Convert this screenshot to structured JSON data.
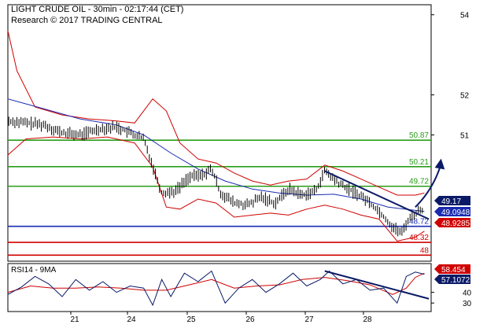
{
  "header": {
    "line1": "LIGHT CRUDE OIL - 30min - 02:17:44 (CET)",
    "line2": "Research © 2017 TRADING CENTRAL"
  },
  "colors": {
    "candle": "#000000",
    "bollinger": "#d00000",
    "ma": "#1a2bb0",
    "support_resistance": "#2a9d1a",
    "pivot": "#1a2bb0",
    "support_red": "#d00000",
    "arrow": "#0a1a66",
    "price_tag_bg": "#0a1a66",
    "ma_tag_bg": "#1a2bb0",
    "bb_tag_bg": "#d00000",
    "rsi": "#0a1a66",
    "rsi_ma": "#d00000"
  },
  "chart_data": [
    {
      "type": "candlestick",
      "instrument": "LIGHT CRUDE OIL",
      "timeframe": "30min",
      "x_ticks": [
        "21",
        "24",
        "25",
        "26",
        "27",
        "28"
      ],
      "y_ticks": [
        54,
        52,
        51
      ],
      "ylim": [
        47.85,
        54.25
      ],
      "levels": [
        {
          "value": 50.87,
          "label": "50.87",
          "color": "#2a9d1a"
        },
        {
          "value": 50.21,
          "label": "50.21",
          "color": "#2a9d1a"
        },
        {
          "value": 49.72,
          "label": "49.72",
          "color": "#2a9d1a"
        },
        {
          "value": 48.72,
          "label": "48.72",
          "color": "#1a2bb0"
        },
        {
          "value": 48.32,
          "label": "48.32",
          "color": "#d00000"
        },
        {
          "value": 48.0,
          "label": "48",
          "color": "#d00000"
        }
      ],
      "tags": [
        {
          "label": "49.17",
          "value": 49.17,
          "style": "price"
        },
        {
          "label": "49.0948",
          "value": 49.0948,
          "style": "ma"
        },
        {
          "label": "48.9285",
          "value": 48.9285,
          "style": "bb"
        }
      ],
      "series": [
        {
          "name": "price",
          "points": [
            [
              20.0,
              51.35
            ],
            [
              20.4,
              51.3
            ],
            [
              20.8,
              51.25
            ],
            [
              21.2,
              51.05
            ],
            [
              21.6,
              51.0
            ],
            [
              22.0,
              51.15
            ],
            [
              22.4,
              51.2
            ],
            [
              22.8,
              51.0
            ],
            [
              23.0,
              50.9
            ],
            [
              23.4,
              49.55
            ],
            [
              23.7,
              49.6
            ],
            [
              24.0,
              49.95
            ],
            [
              24.3,
              50.0
            ],
            [
              24.5,
              50.15
            ],
            [
              24.7,
              49.55
            ],
            [
              25.0,
              49.3
            ],
            [
              25.3,
              49.25
            ],
            [
              25.6,
              49.45
            ],
            [
              25.9,
              49.3
            ],
            [
              26.2,
              49.65
            ],
            [
              26.5,
              49.5
            ],
            [
              26.8,
              49.6
            ],
            [
              27.0,
              50.1
            ],
            [
              27.3,
              49.8
            ],
            [
              27.6,
              49.6
            ],
            [
              27.9,
              49.4
            ],
            [
              28.2,
              49.1
            ],
            [
              28.5,
              48.7
            ],
            [
              28.7,
              48.55
            ],
            [
              28.85,
              48.9
            ],
            [
              29.0,
              49.05
            ],
            [
              29.2,
              49.17
            ]
          ]
        },
        {
          "name": "ma",
          "points": [
            [
              20.0,
              51.9
            ],
            [
              20.8,
              51.65
            ],
            [
              21.6,
              51.4
            ],
            [
              22.4,
              51.25
            ],
            [
              23.0,
              51.0
            ],
            [
              23.6,
              50.55
            ],
            [
              24.2,
              50.15
            ],
            [
              24.8,
              49.85
            ],
            [
              25.4,
              49.65
            ],
            [
              26.0,
              49.55
            ],
            [
              26.6,
              49.5
            ],
            [
              27.2,
              49.52
            ],
            [
              27.8,
              49.4
            ],
            [
              28.4,
              49.2
            ],
            [
              29.2,
              49.09
            ]
          ]
        },
        {
          "name": "bb_upper",
          "points": [
            [
              20.0,
              53.6
            ],
            [
              20.2,
              52.6
            ],
            [
              20.6,
              51.7
            ],
            [
              21.2,
              51.5
            ],
            [
              21.8,
              51.4
            ],
            [
              22.4,
              51.35
            ],
            [
              22.8,
              51.3
            ],
            [
              23.2,
              51.9
            ],
            [
              23.5,
              51.6
            ],
            [
              23.8,
              50.8
            ],
            [
              24.2,
              50.4
            ],
            [
              24.6,
              50.3
            ],
            [
              25.0,
              50.05
            ],
            [
              25.4,
              49.85
            ],
            [
              25.8,
              49.75
            ],
            [
              26.2,
              49.85
            ],
            [
              26.6,
              49.9
            ],
            [
              27.0,
              50.25
            ],
            [
              27.4,
              50.1
            ],
            [
              27.8,
              49.9
            ],
            [
              28.2,
              49.7
            ],
            [
              28.6,
              49.5
            ],
            [
              29.0,
              49.5
            ],
            [
              29.2,
              49.55
            ]
          ]
        },
        {
          "name": "bb_lower",
          "points": [
            [
              20.0,
              50.5
            ],
            [
              20.4,
              50.9
            ],
            [
              21.0,
              50.95
            ],
            [
              21.6,
              50.9
            ],
            [
              22.2,
              50.95
            ],
            [
              22.8,
              50.8
            ],
            [
              23.2,
              50.2
            ],
            [
              23.5,
              49.2
            ],
            [
              23.8,
              49.15
            ],
            [
              24.2,
              49.4
            ],
            [
              24.6,
              49.3
            ],
            [
              25.0,
              48.95
            ],
            [
              25.4,
              49.0
            ],
            [
              25.8,
              49.05
            ],
            [
              26.2,
              49.0
            ],
            [
              26.6,
              49.15
            ],
            [
              27.0,
              49.25
            ],
            [
              27.4,
              49.15
            ],
            [
              27.8,
              49.0
            ],
            [
              28.2,
              48.9
            ],
            [
              28.6,
              48.35
            ],
            [
              29.0,
              48.45
            ],
            [
              29.2,
              48.6
            ]
          ]
        }
      ],
      "trendline": [
        [
          27.0,
          50.1
        ],
        [
          29.3,
          48.9
        ]
      ],
      "forecast_arrow": [
        [
          29.0,
          49.2
        ],
        [
          29.55,
          50.21
        ]
      ]
    },
    {
      "type": "line",
      "title": "RSI14 - 9MA",
      "y_ticks": [
        40,
        30
      ],
      "ylim": [
        22,
        67
      ],
      "tags": [
        {
          "label": "58.454",
          "value": 58.454,
          "style": "bb"
        },
        {
          "label": "57.1072",
          "value": 57.1072,
          "style": "price"
        }
      ],
      "series": [
        {
          "name": "rsi",
          "points": [
            [
              20.0,
              38
            ],
            [
              20.3,
              45
            ],
            [
              20.6,
              55
            ],
            [
              20.9,
              48
            ],
            [
              21.2,
              36
            ],
            [
              21.5,
              52
            ],
            [
              21.8,
              42
            ],
            [
              22.1,
              50
            ],
            [
              22.4,
              40
            ],
            [
              22.7,
              46
            ],
            [
              23.0,
              44
            ],
            [
              23.2,
              28
            ],
            [
              23.4,
              52
            ],
            [
              23.6,
              36
            ],
            [
              23.9,
              58
            ],
            [
              24.2,
              50
            ],
            [
              24.5,
              60
            ],
            [
              24.8,
              30
            ],
            [
              25.1,
              44
            ],
            [
              25.4,
              52
            ],
            [
              25.7,
              40
            ],
            [
              26.0,
              48
            ],
            [
              26.3,
              58
            ],
            [
              26.6,
              46
            ],
            [
              26.9,
              52
            ],
            [
              27.1,
              60
            ],
            [
              27.4,
              48
            ],
            [
              27.7,
              52
            ],
            [
              28.0,
              42
            ],
            [
              28.3,
              44
            ],
            [
              28.6,
              30
            ],
            [
              28.8,
              55
            ],
            [
              29.0,
              59
            ],
            [
              29.2,
              57
            ]
          ]
        },
        {
          "name": "rsi_ma",
          "points": [
            [
              20.0,
              40
            ],
            [
              20.5,
              46
            ],
            [
              21.0,
              44
            ],
            [
              21.5,
              44
            ],
            [
              22.0,
              45
            ],
            [
              22.5,
              44
            ],
            [
              23.0,
              42
            ],
            [
              23.5,
              42
            ],
            [
              24.0,
              47
            ],
            [
              24.5,
              52
            ],
            [
              25.0,
              44
            ],
            [
              25.5,
              46
            ],
            [
              26.0,
              47
            ],
            [
              26.5,
              52
            ],
            [
              27.0,
              54
            ],
            [
              27.5,
              51
            ],
            [
              28.0,
              47
            ],
            [
              28.5,
              38
            ],
            [
              28.8,
              44
            ],
            [
              29.0,
              54
            ],
            [
              29.2,
              58
            ]
          ]
        }
      ],
      "trendline": [
        [
          27.0,
          60
        ],
        [
          29.3,
          34
        ]
      ]
    }
  ]
}
